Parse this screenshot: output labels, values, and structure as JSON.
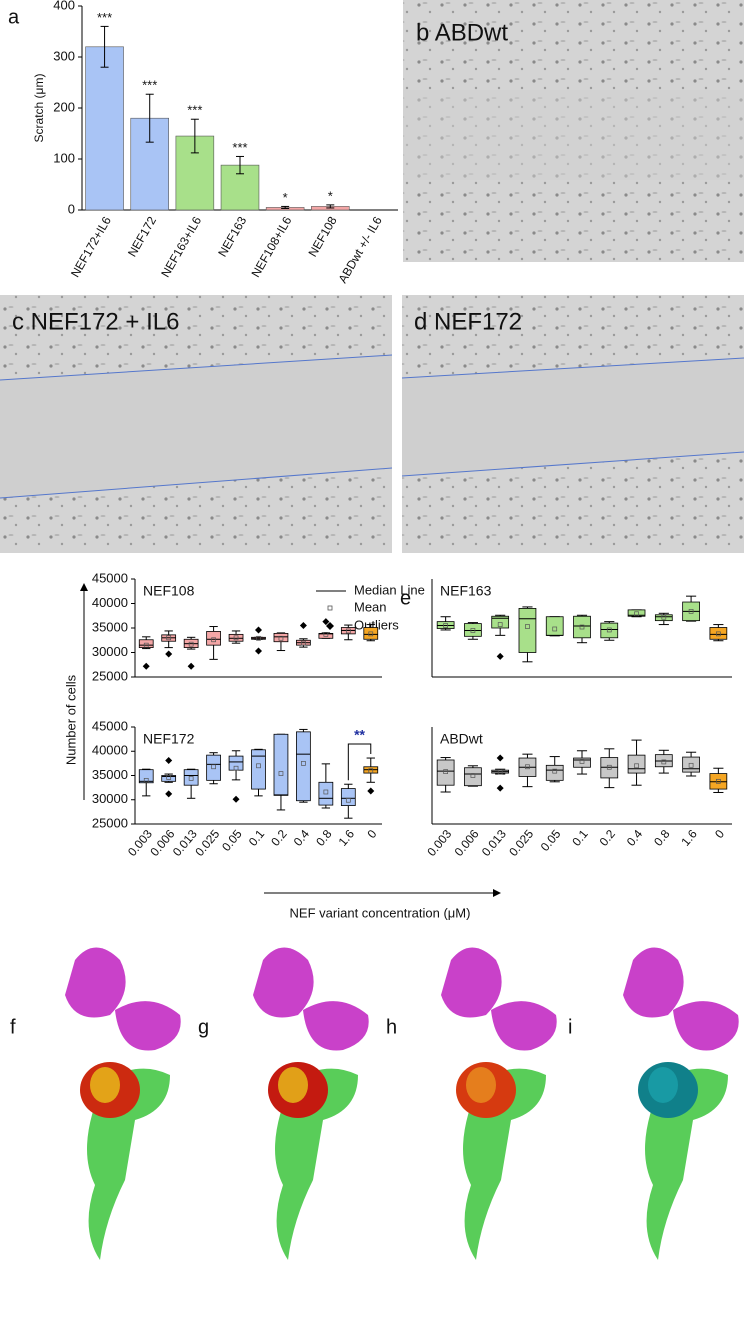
{
  "chart_data": [
    {
      "type": "bar",
      "panel": "a",
      "y_label": "Scratch (μm)",
      "categories": [
        "NEF172+IL6",
        "NEF172",
        "NEF163+IL6",
        "NEF163",
        "NEF108+IL6",
        "NEF108",
        "ABDwt +/- IL6"
      ],
      "values": [
        320,
        180,
        145,
        88,
        5,
        7,
        0
      ],
      "errors": [
        40,
        47,
        33,
        17,
        2,
        3,
        0
      ],
      "significance": [
        "***",
        "***",
        "***",
        "***",
        "*",
        "*",
        null
      ],
      "colors": [
        "#a9c4f5",
        "#a9c4f5",
        "#a8e08a",
        "#a8e08a",
        "#f4a6a6",
        "#f4a6a6",
        "#f4a6a6"
      ],
      "ylim": [
        0,
        400
      ],
      "yticks": [
        0,
        100,
        200,
        300,
        400
      ]
    },
    {
      "type": "box",
      "title": "NEF108",
      "categories": [
        null,
        null,
        null,
        null,
        null,
        null,
        null,
        null,
        null,
        null,
        null
      ],
      "min": [
        30800,
        31000,
        30700,
        28600,
        31900,
        32700,
        30400,
        31100,
        32900,
        32600,
        32400
      ],
      "q1": [
        31000,
        32300,
        31000,
        31500,
        32300,
        32700,
        32200,
        31500,
        32900,
        33800,
        32700
      ],
      "median": [
        31500,
        33000,
        31800,
        32700,
        32900,
        32900,
        33200,
        32000,
        33800,
        34500,
        33700
      ],
      "q3": [
        32600,
        33600,
        32700,
        34300,
        33700,
        33100,
        33900,
        32500,
        33900,
        35100,
        35100
      ],
      "max": [
        33200,
        34400,
        33100,
        35300,
        34400,
        33100,
        34000,
        32800,
        34000,
        35600,
        35700
      ],
      "mean": [
        31500,
        33000,
        31700,
        32600,
        33000,
        32900,
        32900,
        31900,
        33700,
        34400,
        33800
      ],
      "outliers": [
        [
          27200
        ],
        [
          29700
        ],
        [
          27200
        ],
        [],
        [],
        [
          34600,
          30300
        ],
        [],
        [
          35500
        ],
        [
          36300
        ],
        [],
        []
      ],
      "colors": [
        "#f4a6a6",
        "#f4a6a6",
        "#f4a6a6",
        "#f4a6a6",
        "#f4a6a6",
        "#f4a6a6",
        "#f4a6a6",
        "#f4a6a6",
        "#f4a6a6",
        "#f4a6a6",
        "#f5a623"
      ],
      "ylim": [
        25000,
        45000
      ],
      "yticks": [
        25000,
        30000,
        35000,
        40000,
        45000
      ]
    },
    {
      "type": "box",
      "title": "NEF163",
      "categories": [
        null,
        null,
        null,
        null,
        null,
        null,
        null,
        null,
        null,
        null,
        null
      ],
      "min": [
        34600,
        32700,
        33500,
        28100,
        33400,
        32000,
        32500,
        37300,
        35700,
        36400,
        32400
      ],
      "q1": [
        34900,
        33300,
        35000,
        30000,
        33500,
        33000,
        33000,
        37400,
        36500,
        36500,
        32700
      ],
      "median": [
        35500,
        34500,
        37000,
        36900,
        33500,
        35400,
        34700,
        37600,
        37300,
        38400,
        33700
      ],
      "q3": [
        36300,
        35900,
        37400,
        39000,
        37300,
        37400,
        36000,
        38700,
        37700,
        40300,
        35100
      ],
      "max": [
        37300,
        36100,
        37600,
        39300,
        37300,
        37600,
        36300,
        38700,
        38000,
        41500,
        35700
      ],
      "mean": [
        35500,
        34500,
        35700,
        35300,
        34800,
        35200,
        34600,
        37900,
        37200,
        38400,
        33800
      ],
      "outliers": [
        [],
        [],
        [
          29200
        ],
        [],
        [],
        [],
        [],
        [],
        [],
        [],
        []
      ],
      "colors": [
        "#a8e08a",
        "#a8e08a",
        "#a8e08a",
        "#a8e08a",
        "#a8e08a",
        "#a8e08a",
        "#a8e08a",
        "#a8e08a",
        "#a8e08a",
        "#a8e08a",
        "#f5a623"
      ],
      "ylim": [
        25000,
        45000
      ]
    },
    {
      "type": "box",
      "title": "NEF172",
      "annotation": "**",
      "categories": [
        "0.003",
        "0.006",
        "0.013",
        "0.025",
        "0.05",
        "0.1",
        "0.2",
        "0.4",
        "0.8",
        "1.6",
        "0"
      ],
      "min": [
        30800,
        33600,
        30300,
        33300,
        34100,
        30800,
        27900,
        29500,
        28300,
        26200,
        33600
      ],
      "q1": [
        33500,
        33800,
        33000,
        34000,
        36100,
        32200,
        30900,
        29800,
        28900,
        28800,
        35500
      ],
      "median": [
        33800,
        34800,
        35000,
        37300,
        37800,
        39000,
        31000,
        39400,
        30300,
        30300,
        36200
      ],
      "q3": [
        36200,
        35000,
        36200,
        39200,
        39000,
        40300,
        43500,
        44000,
        33600,
        32300,
        36800
      ],
      "max": [
        36300,
        35300,
        36300,
        39700,
        40100,
        40400,
        43500,
        44500,
        37400,
        33200,
        38600
      ],
      "mean": [
        34000,
        34600,
        34400,
        36800,
        36500,
        37000,
        35400,
        37500,
        31600,
        29900,
        36000
      ],
      "outliers": [
        [],
        [
          38100,
          31200
        ],
        [],
        [],
        [
          30100
        ],
        [],
        [],
        [],
        [],
        [],
        [
          31800
        ]
      ],
      "colors": [
        "#a9c4f5",
        "#a9c4f5",
        "#a9c4f5",
        "#a9c4f5",
        "#a9c4f5",
        "#a9c4f5",
        "#a9c4f5",
        "#a9c4f5",
        "#a9c4f5",
        "#a9c4f5",
        "#f5a623"
      ],
      "ylim": [
        25000,
        45000
      ],
      "yticks": [
        25000,
        30000,
        35000,
        40000,
        45000
      ]
    },
    {
      "type": "box",
      "title": "ABDwt",
      "categories": [
        "0.003",
        "0.006",
        "0.013",
        "0.025",
        "0.05",
        "0.1",
        "0.2",
        "0.4",
        "0.8",
        "1.6",
        "0"
      ],
      "min": [
        31600,
        32800,
        35300,
        32700,
        33700,
        35300,
        32500,
        33000,
        35500,
        34900,
        31500
      ],
      "q1": [
        33000,
        32900,
        35500,
        34800,
        34000,
        36700,
        34500,
        35500,
        36800,
        35700,
        32200
      ],
      "median": [
        35900,
        35300,
        35800,
        36700,
        36100,
        38200,
        36700,
        36400,
        38000,
        36400,
        33700
      ],
      "q3": [
        38200,
        36600,
        36100,
        38600,
        37100,
        38600,
        38700,
        39200,
        39300,
        38800,
        35400
      ],
      "max": [
        38700,
        37000,
        36300,
        39400,
        38900,
        40100,
        40500,
        42300,
        40200,
        39800,
        36500
      ],
      "mean": [
        35800,
        35000,
        35700,
        36800,
        35900,
        37900,
        36700,
        37000,
        37800,
        37100,
        33800
      ],
      "outliers": [
        [],
        [],
        [
          38600,
          32400
        ],
        [],
        [],
        [],
        [],
        [],
        [],
        [],
        []
      ],
      "colors": [
        "#c8c8c8",
        "#c8c8c8",
        "#c8c8c8",
        "#c8c8c8",
        "#c8c8c8",
        "#c8c8c8",
        "#c8c8c8",
        "#c8c8c8",
        "#c8c8c8",
        "#c8c8c8",
        "#f5a623"
      ],
      "ylim": [
        25000,
        45000
      ]
    }
  ],
  "panel_e": {
    "letter": "e",
    "y_label": "Number of cells",
    "x_label": "NEF variant concentration (μM)",
    "legend": [
      "Median Line",
      "Mean",
      "Outliers"
    ]
  },
  "images": [
    "b ABDwt",
    "c NEF172 + IL6",
    "d NEF172"
  ],
  "structures": [
    "f",
    "g",
    "h",
    "i"
  ]
}
